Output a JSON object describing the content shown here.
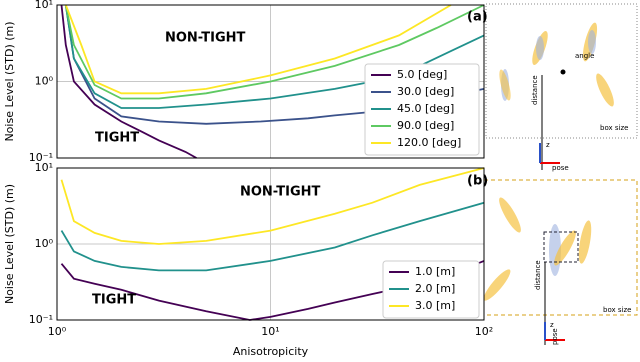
{
  "chart_data": [
    {
      "type": "line",
      "log_x": true,
      "log_y": true,
      "grid": true,
      "legend_loc": "center right",
      "ylabel": "Noise Level (STD) (m)",
      "annotations": [
        "NON-TIGHT",
        "TIGHT",
        "(a)"
      ],
      "xlim": [
        1,
        100
      ],
      "ylim": [
        0.1,
        10
      ],
      "xticks": [
        1,
        10,
        100
      ],
      "xtick_labels": false,
      "yticks": [
        {
          "value": 0.1,
          "label": "10⁻¹"
        },
        {
          "value": 1,
          "label": "10⁰"
        },
        {
          "value": 10,
          "label": "10¹"
        }
      ],
      "series": [
        {
          "name": "5.0 [deg]",
          "color": "#440154",
          "x": [
            1.05,
            1.1,
            1.2,
            1.5,
            2,
            2.5,
            3,
            4,
            4.5
          ],
          "values": [
            10,
            3,
            1,
            0.5,
            0.3,
            0.22,
            0.17,
            0.12,
            0.1
          ]
        },
        {
          "name": "30.0 [deg]",
          "color": "#3b528b",
          "x": [
            1.1,
            1.2,
            1.5,
            2,
            3,
            5,
            9,
            15,
            20,
            30,
            50,
            70,
            100
          ],
          "values": [
            10,
            2,
            0.6,
            0.35,
            0.3,
            0.28,
            0.3,
            0.33,
            0.36,
            0.4,
            0.5,
            0.65,
            0.8
          ]
        },
        {
          "name": "45.0 [deg]",
          "color": "#21918c",
          "x": [
            1.1,
            1.2,
            1.5,
            2,
            3,
            5,
            10,
            20,
            30,
            50,
            70,
            100
          ],
          "values": [
            10,
            2,
            0.7,
            0.45,
            0.45,
            0.5,
            0.6,
            0.8,
            1.0,
            1.6,
            2.5,
            4
          ]
        },
        {
          "name": "90.0 [deg]",
          "color": "#5ec962",
          "x": [
            1.1,
            1.2,
            1.5,
            2,
            3,
            5,
            10,
            20,
            40,
            60,
            100
          ],
          "values": [
            10,
            3,
            0.9,
            0.6,
            0.6,
            0.7,
            1.0,
            1.6,
            3,
            5,
            10
          ]
        },
        {
          "name": "120.0 [deg]",
          "color": "#fde725",
          "x": [
            1.1,
            1.3,
            1.5,
            2,
            3,
            5,
            10,
            20,
            40,
            70
          ],
          "values": [
            10,
            3,
            1.0,
            0.7,
            0.7,
            0.8,
            1.2,
            2,
            4,
            10
          ]
        }
      ]
    },
    {
      "type": "line",
      "log_x": true,
      "log_y": true,
      "grid": true,
      "legend_loc": "lower right",
      "ylabel": "Noise Level (STD) (m)",
      "xlabel": "Anisotropicity",
      "annotations": [
        "NON-TIGHT",
        "TIGHT",
        "(b)"
      ],
      "xlim": [
        1,
        100
      ],
      "ylim": [
        0.1,
        10
      ],
      "xticks": [
        {
          "value": 1,
          "label": "10⁰"
        },
        {
          "value": 10,
          "label": "10¹"
        },
        {
          "value": 100,
          "label": "10²"
        }
      ],
      "xtick_labels": true,
      "yticks": [
        {
          "value": 0.1,
          "label": "10⁻¹"
        },
        {
          "value": 1,
          "label": "10⁰"
        },
        {
          "value": 10,
          "label": "10¹"
        }
      ],
      "series": [
        {
          "name": "1.0 [m]",
          "color": "#440154",
          "x": [
            1.05,
            1.2,
            1.5,
            2,
            3,
            5,
            8,
            10,
            15,
            20,
            30,
            50,
            70,
            100
          ],
          "values": [
            0.55,
            0.35,
            0.3,
            0.25,
            0.18,
            0.13,
            0.1,
            0.11,
            0.14,
            0.17,
            0.22,
            0.3,
            0.4,
            0.6
          ]
        },
        {
          "name": "2.0 [m]",
          "color": "#21918c",
          "x": [
            1.05,
            1.2,
            1.5,
            2,
            3,
            5,
            10,
            20,
            30,
            50,
            100
          ],
          "values": [
            1.5,
            0.8,
            0.6,
            0.5,
            0.45,
            0.45,
            0.6,
            0.9,
            1.3,
            2,
            3.5
          ]
        },
        {
          "name": "3.0 [m]",
          "color": "#fde725",
          "x": [
            1.05,
            1.2,
            1.5,
            2,
            3,
            5,
            10,
            20,
            30,
            50,
            100
          ],
          "values": [
            7,
            2,
            1.4,
            1.1,
            1.0,
            1.1,
            1.5,
            2.5,
            3.5,
            6,
            10
          ]
        }
      ]
    }
  ],
  "diagrams": {
    "a": {
      "angle": "angle",
      "distance": "distance",
      "box_size": "box size",
      "pose": "pose",
      "z": "z"
    },
    "b": {
      "distance": "distance",
      "box_size": "box size",
      "pose": "pose",
      "z": "z"
    }
  }
}
